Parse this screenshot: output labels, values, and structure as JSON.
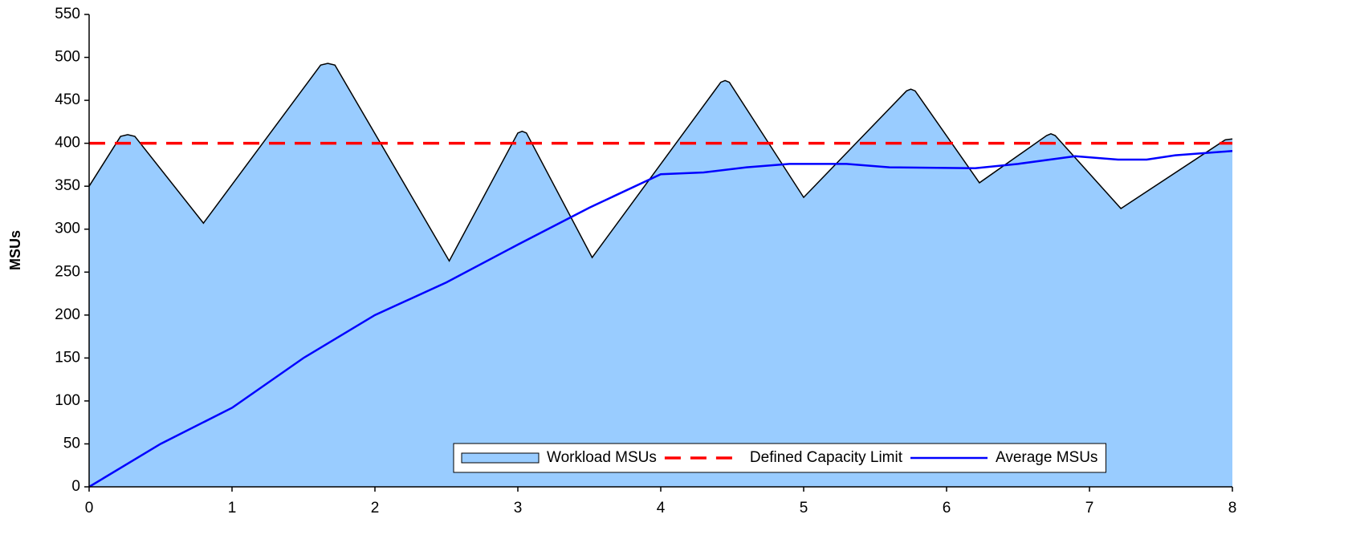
{
  "chart_data": {
    "type": "line",
    "ylabel": "MSUs",
    "xlim": [
      0,
      8
    ],
    "xticks": [
      0,
      1,
      2,
      3,
      4,
      5,
      6,
      7,
      8
    ],
    "ylim": [
      0,
      550
    ],
    "yticks": [
      0,
      50,
      100,
      150,
      200,
      250,
      300,
      350,
      400,
      450,
      500,
      550
    ],
    "legend": "lower right",
    "series": [
      {
        "name": "Workload MSUs",
        "type": "area",
        "color": "#99ccff",
        "edge_color": "#000000",
        "x": [
          0,
          0.22,
          0.27,
          0.32,
          0.8,
          1.62,
          1.67,
          1.72,
          2.52,
          3.0,
          3.03,
          3.06,
          3.52,
          4.42,
          4.45,
          4.48,
          5.0,
          5.72,
          5.75,
          5.78,
          6.23,
          6.7,
          6.73,
          6.76,
          7.22,
          7.95,
          8
        ],
        "values": [
          350,
          408,
          410,
          408,
          307,
          491,
          493,
          491,
          263,
          412,
          414,
          412,
          267,
          471,
          473,
          471,
          337,
          461,
          463,
          461,
          354,
          409,
          411,
          409,
          324,
          404,
          405
        ]
      },
      {
        "name": "Defined Capacity Limit",
        "type": "line",
        "line_style": "dashed",
        "color": "#ff0000",
        "x": [
          0,
          8
        ],
        "values": [
          400,
          400
        ]
      },
      {
        "name": "Average MSUs",
        "type": "line",
        "line_style": "solid",
        "color": "#0000ff",
        "x": [
          0,
          0.5,
          1,
          1.5,
          2,
          2.5,
          3,
          3.5,
          4,
          4.3,
          4.6,
          4.9,
          5.3,
          5.6,
          6.2,
          6.5,
          6.9,
          7.2,
          7.4,
          7.6,
          8
        ],
        "values": [
          0,
          50,
          92,
          150,
          200,
          238,
          282,
          325,
          364,
          366,
          372,
          376,
          376,
          372,
          371,
          376,
          385,
          381,
          381,
          386,
          391
        ]
      }
    ]
  }
}
